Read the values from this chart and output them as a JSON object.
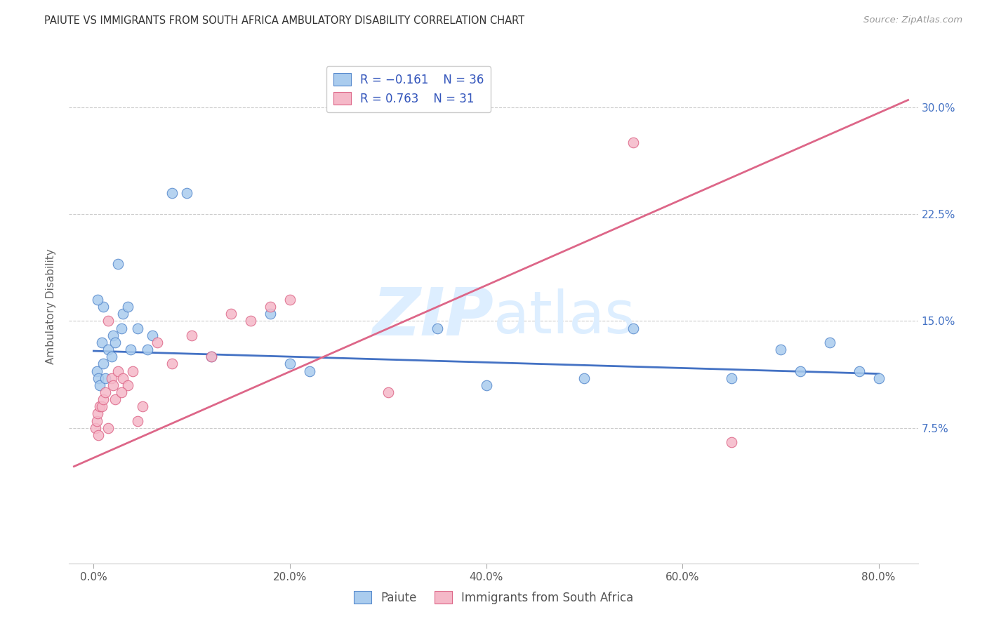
{
  "title": "PAIUTE VS IMMIGRANTS FROM SOUTH AFRICA AMBULATORY DISABILITY CORRELATION CHART",
  "source": "Source: ZipAtlas.com",
  "ylabel": "Ambulatory Disability",
  "x_tick_labels": [
    "0.0%",
    "20.0%",
    "40.0%",
    "60.0%",
    "80.0%"
  ],
  "x_tick_values": [
    0.0,
    20.0,
    40.0,
    60.0,
    80.0
  ],
  "y_tick_labels": [
    "7.5%",
    "15.0%",
    "22.5%",
    "30.0%"
  ],
  "y_tick_values": [
    7.5,
    15.0,
    22.5,
    30.0
  ],
  "xlim": [
    -2.5,
    84.0
  ],
  "ylim": [
    -2.0,
    34.0
  ],
  "legend_labels": [
    "Paiute",
    "Immigrants from South Africa"
  ],
  "paiute_color": "#aaccee",
  "paiute_edge_color": "#5588cc",
  "immigrant_color": "#f5b8c8",
  "immigrant_edge_color": "#dd6688",
  "paiute_line_color": "#4472c4",
  "immigrant_line_color": "#dd6688",
  "watermark_text": "ZIPatlas",
  "watermark_color": "#ddeeff",
  "background_color": "#ffffff",
  "grid_color": "#cccccc",
  "paiute_x": [
    0.3,
    0.5,
    0.6,
    0.8,
    1.0,
    1.2,
    1.5,
    1.8,
    2.0,
    2.2,
    2.5,
    3.0,
    3.5,
    4.5,
    6.0,
    8.0,
    9.5,
    12.0,
    18.0,
    20.0,
    22.0,
    35.0,
    40.0,
    50.0,
    55.0,
    65.0,
    70.0,
    72.0,
    75.0,
    78.0,
    80.0,
    1.0,
    0.4,
    3.8,
    2.8,
    5.5
  ],
  "paiute_y": [
    11.5,
    11.0,
    10.5,
    13.5,
    12.0,
    11.0,
    13.0,
    12.5,
    14.0,
    13.5,
    19.0,
    15.5,
    16.0,
    14.5,
    14.0,
    24.0,
    24.0,
    12.5,
    15.5,
    12.0,
    11.5,
    14.5,
    10.5,
    11.0,
    14.5,
    11.0,
    13.0,
    11.5,
    13.5,
    11.5,
    11.0,
    16.0,
    16.5,
    13.0,
    14.5,
    13.0
  ],
  "immigrant_x": [
    0.2,
    0.3,
    0.4,
    0.5,
    0.6,
    0.8,
    1.0,
    1.2,
    1.5,
    1.8,
    2.0,
    2.2,
    2.5,
    3.0,
    3.5,
    4.0,
    5.0,
    6.5,
    8.0,
    10.0,
    12.0,
    14.0,
    16.0,
    18.0,
    20.0,
    30.0,
    55.0,
    65.0,
    1.5,
    2.8,
    4.5
  ],
  "immigrant_y": [
    7.5,
    8.0,
    8.5,
    7.0,
    9.0,
    9.0,
    9.5,
    10.0,
    15.0,
    11.0,
    10.5,
    9.5,
    11.5,
    11.0,
    10.5,
    11.5,
    9.0,
    13.5,
    12.0,
    14.0,
    12.5,
    15.5,
    15.0,
    16.0,
    16.5,
    10.0,
    27.5,
    6.5,
    7.5,
    10.0,
    8.0
  ],
  "paiute_line_x0": 0.0,
  "paiute_line_y0": 12.9,
  "paiute_line_x1": 80.0,
  "paiute_line_y1": 11.3,
  "immigrant_line_x0": -2.0,
  "immigrant_line_y0": 4.8,
  "immigrant_line_x1": 83.0,
  "immigrant_line_y1": 30.5
}
